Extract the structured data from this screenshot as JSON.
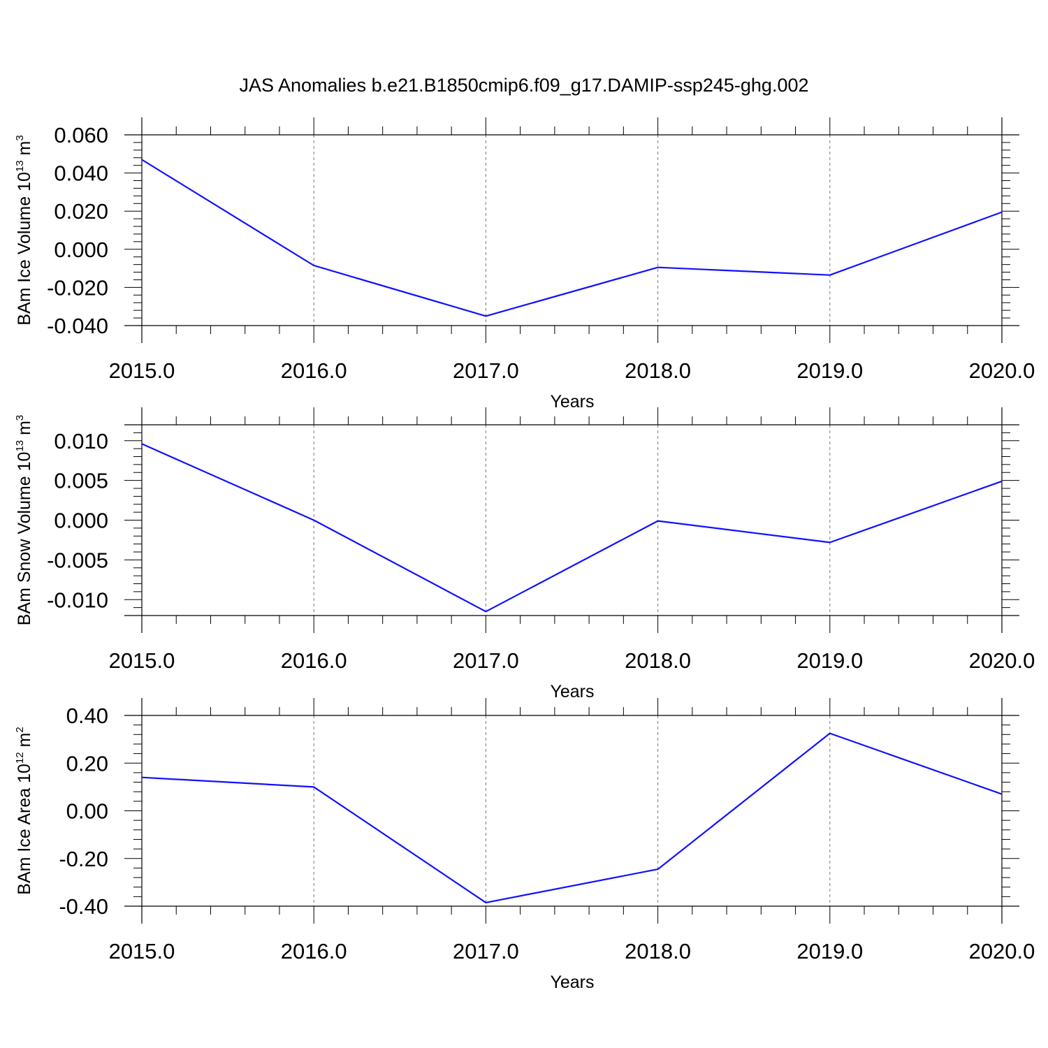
{
  "figure": {
    "title": "JAS Anomalies b.e21.B1850cmip6.f09_g17.DAMIP-ssp245-ghg.002"
  },
  "colors": {
    "line": "#1010ff",
    "axes": "#000000",
    "grid": "#777777"
  },
  "chart_data": [
    {
      "type": "line",
      "title": "",
      "xlabel": "Years",
      "ylabel": {
        "text": "BAm Ice Volume 10",
        "sup": "13",
        "unit": " m",
        "unit_sup": "3"
      },
      "x": [
        2015,
        2016,
        2017,
        2018,
        2019,
        2020
      ],
      "x_tick_labels": [
        "2015.0",
        "2016.0",
        "2017.0",
        "2018.0",
        "2019.0",
        "2020.0"
      ],
      "series": [
        {
          "values": [
            0.047,
            -0.0085,
            -0.035,
            -0.0095,
            -0.0135,
            0.0195
          ]
        }
      ],
      "xlim": [
        2015,
        2020
      ],
      "ylim": [
        -0.04,
        0.06
      ],
      "y_ticks": [
        0.06,
        0.04,
        0.02,
        0.0,
        -0.02,
        -0.04
      ],
      "y_tick_labels": [
        "0.060",
        "0.040",
        "0.020",
        "0.000",
        "-0.020",
        "-0.040"
      ],
      "vertical_grid": "dashed at each year"
    },
    {
      "type": "line",
      "title": "",
      "xlabel": "Years",
      "ylabel": {
        "text": "BAm Snow Volume 10",
        "sup": "13",
        "unit": " m",
        "unit_sup": "3"
      },
      "x": [
        2015,
        2016,
        2017,
        2018,
        2019,
        2020
      ],
      "x_tick_labels": [
        "2015.0",
        "2016.0",
        "2017.0",
        "2018.0",
        "2019.0",
        "2020.0"
      ],
      "series": [
        {
          "values": [
            0.0096,
            0.0,
            -0.0115,
            -0.0001,
            -0.0028,
            0.0049
          ]
        }
      ],
      "xlim": [
        2015,
        2020
      ],
      "ylim": [
        -0.012,
        0.012
      ],
      "y_ticks": [
        0.01,
        0.005,
        0.0,
        -0.005,
        -0.01
      ],
      "y_tick_labels": [
        "0.010",
        "0.005",
        "0.000",
        "-0.005",
        "-0.010"
      ],
      "vertical_grid": "dashed at each year"
    },
    {
      "type": "line",
      "title": "",
      "xlabel": "Years",
      "ylabel": {
        "text": "BAm Ice Area 10",
        "sup": "12",
        "unit": " m",
        "unit_sup": "2"
      },
      "x": [
        2015,
        2016,
        2017,
        2018,
        2019,
        2020
      ],
      "x_tick_labels": [
        "2015.0",
        "2016.0",
        "2017.0",
        "2018.0",
        "2019.0",
        "2020.0"
      ],
      "series": [
        {
          "values": [
            0.14,
            0.1,
            -0.385,
            -0.245,
            0.325,
            0.07
          ]
        }
      ],
      "xlim": [
        2015,
        2020
      ],
      "ylim": [
        -0.4,
        0.4
      ],
      "y_ticks": [
        0.4,
        0.2,
        0.0,
        -0.2,
        -0.4
      ],
      "y_tick_labels": [
        "0.40",
        "0.20",
        "0.00",
        "-0.20",
        "-0.40"
      ],
      "vertical_grid": "dashed at each year"
    }
  ]
}
